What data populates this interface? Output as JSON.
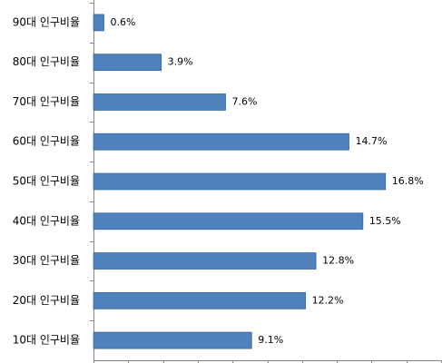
{
  "chart_data": {
    "type": "hbar",
    "categories": [
      "90대 인구비율",
      "80대 인구비율",
      "70대 인구비율",
      "60대 인구비율",
      "50대 인구비율",
      "40대 인구비율",
      "30대 인구비율",
      "20대 인구비율",
      "10대 인구비율"
    ],
    "values": [
      0.6,
      3.9,
      7.6,
      14.7,
      16.8,
      15.5,
      12.8,
      12.2,
      9.1
    ],
    "value_labels": [
      "0.6%",
      "3.9%",
      "7.6%",
      "14.7%",
      "16.8%",
      "15.5%",
      "12.8%",
      "12.2%",
      "9.1%"
    ],
    "color": "#4f81bd",
    "xlim": [
      0,
      20
    ],
    "xticks": [
      0,
      2,
      4,
      6,
      8,
      10,
      12,
      14,
      16,
      18,
      20
    ],
    "grid": false
  }
}
